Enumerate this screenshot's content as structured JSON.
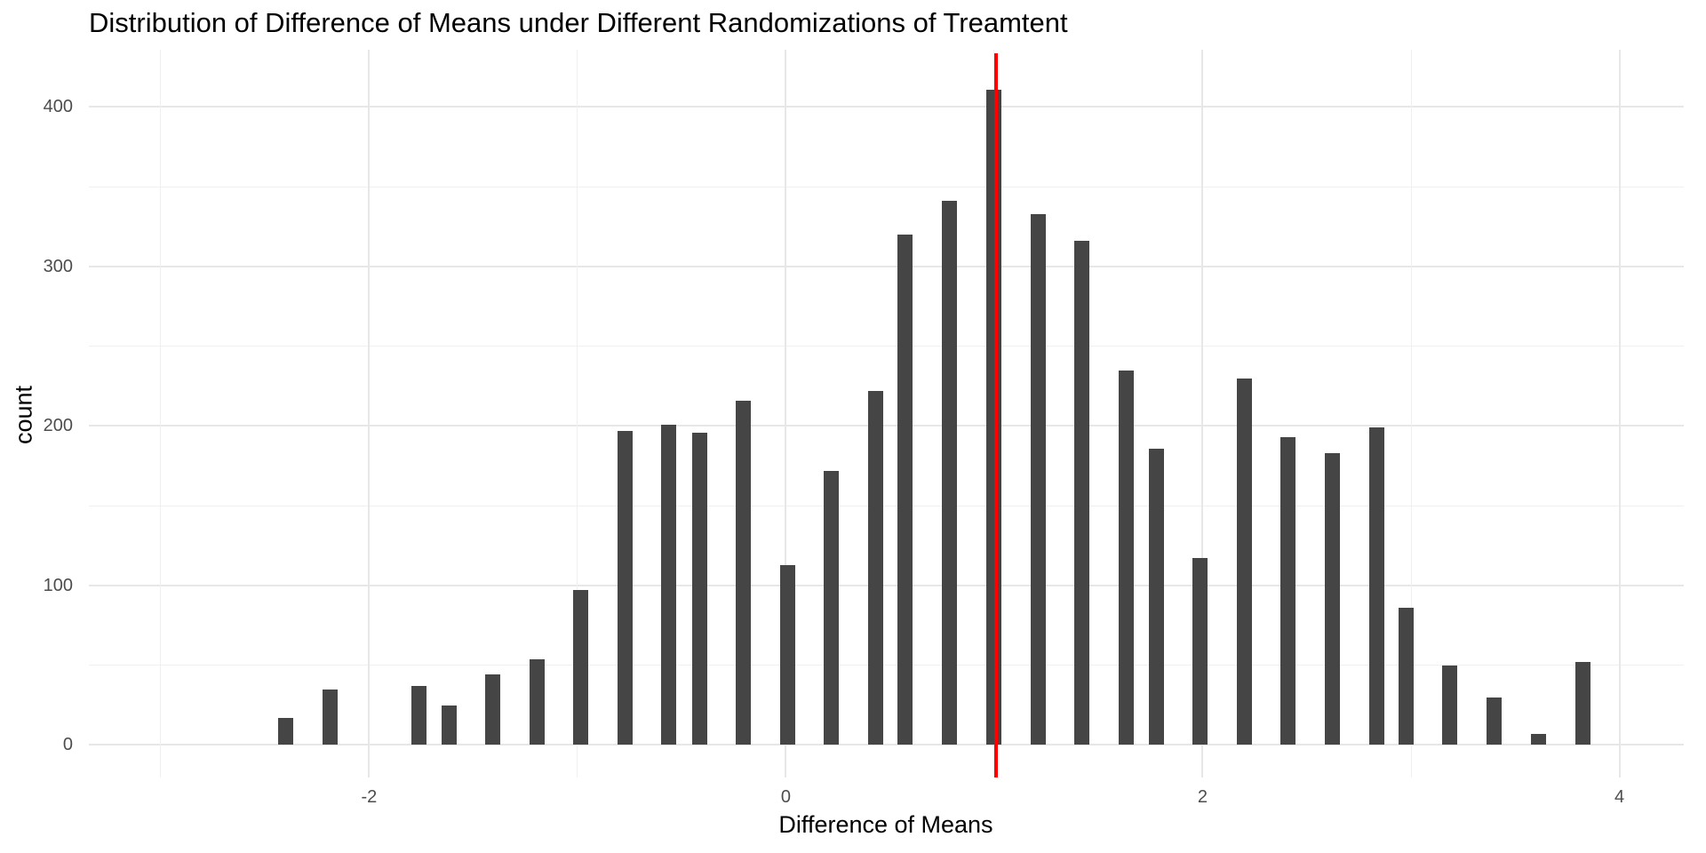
{
  "chart_data": {
    "type": "bar",
    "title": "Distribution of Difference of Means under Different Randomizations of Treamtent",
    "xlabel": "Difference of Means",
    "ylabel": "count",
    "x": [
      -2.399,
      -2.188,
      -1.761,
      -1.617,
      -1.408,
      -1.195,
      -0.983,
      -0.77,
      -0.561,
      -0.413,
      -0.206,
      0.009,
      0.218,
      0.43,
      0.572,
      0.783,
      0.998,
      1.212,
      1.422,
      1.634,
      1.777,
      1.989,
      2.2,
      2.411,
      2.623,
      2.836,
      2.975,
      3.187,
      3.4,
      3.613,
      3.825
    ],
    "counts": [
      17,
      35,
      37,
      25,
      44,
      54,
      97,
      197,
      201,
      196,
      216,
      113,
      172,
      222,
      320,
      341,
      411,
      333,
      316,
      235,
      186,
      117,
      230,
      193,
      183,
      199,
      86,
      50,
      30,
      7,
      52
    ],
    "x_ticks": {
      "values": [
        -2,
        0,
        2,
        4
      ],
      "labels": [
        "-2",
        "0",
        "2",
        "4"
      ]
    },
    "x_minor": [
      -3,
      -1,
      1,
      3
    ],
    "y_ticks": {
      "values": [
        0,
        100,
        200,
        300,
        400
      ],
      "labels": [
        "0",
        "100",
        "200",
        "300",
        "400"
      ]
    },
    "y_minor": [
      50,
      150,
      250,
      350
    ],
    "xlim": [
      -3.345,
      4.309
    ],
    "ylim": [
      -20.33,
      435.8
    ],
    "vline": {
      "x": 1.008,
      "color": "#ff0000"
    },
    "bar_color": "#454545",
    "grid": true,
    "legend": false
  }
}
